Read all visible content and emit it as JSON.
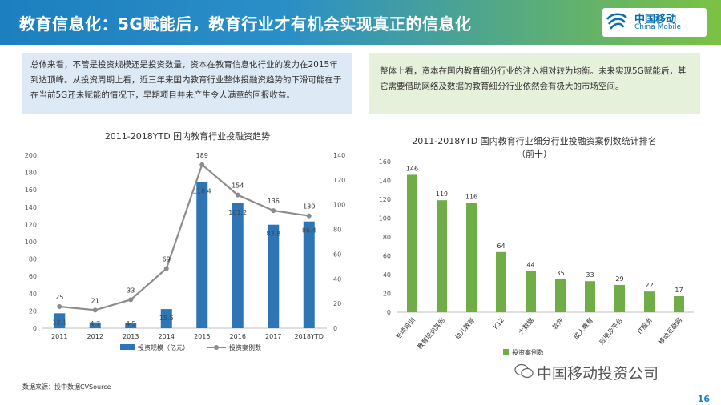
{
  "header": {
    "title": "教育信息化：5G赋能后，教育行业才有机会实现真正的信息化",
    "logo_cn": "中国移动",
    "logo_en": "China Mobile"
  },
  "left_box": {
    "text": "总体来看，不管是投资规模还是投资数量，资本在教育信息化行业的发力在2015年到达顶峰。从投资周期上看，近三年来国内教育行业整体投融资趋势的下滑可能在于在当前5G还未赋能的情况下，早期项目并未产生令人满意的回报收益。"
  },
  "right_box": {
    "text": "整体上看，资本在国内教育细分行业的注入相对较为均衡。未来实现5G赋能后，其它需要借助网络及数据的教育细分行业依然会有极大的市场空间。"
  },
  "chart_data": [
    {
      "type": "bar",
      "title": "2011-2018YTD 国内教育行业投融资趋势",
      "categories": [
        "2011",
        "2012",
        "2013",
        "2014",
        "2015",
        "2016",
        "2017",
        "2018YTD"
      ],
      "series": [
        {
          "name": "投资规模（亿元）",
          "kind": "bar",
          "axis": "right",
          "values": [
            12.1,
            4.7,
            4.5,
            15.5,
            118.4,
            101.2,
            83.8,
            86.4
          ],
          "color": "#2e75b6"
        },
        {
          "name": "投资案例数",
          "kind": "line",
          "axis": "left",
          "values": [
            25,
            21,
            33,
            69,
            189,
            154,
            136,
            130
          ],
          "color": "#8c8c8c"
        }
      ],
      "ylim_left": [
        0,
        200
      ],
      "yticks_left": [
        0,
        20,
        40,
        60,
        80,
        100,
        120,
        140,
        160,
        180,
        200
      ],
      "ylim_right": [
        0,
        140
      ],
      "yticks_right": [
        0,
        20,
        40,
        60,
        80,
        100,
        120,
        140
      ],
      "legend": "bottom"
    },
    {
      "type": "bar",
      "title": "2011-2018YTD 国内教育行业细分行业投融资案例数统计排名",
      "subtitle": "（前十）",
      "categories": [
        "专项培训",
        "教育培训其他",
        "幼儿教育",
        "K12",
        "大数据",
        "软件",
        "成人教育",
        "应用及平台",
        "IT服务",
        "移动互联网"
      ],
      "series": [
        {
          "name": "投资案例数",
          "values": [
            146,
            119,
            116,
            64,
            44,
            35,
            33,
            29,
            22,
            17
          ],
          "color": "#70ad47"
        }
      ],
      "ylim": [
        0,
        160
      ],
      "yticks": [
        0,
        20,
        40,
        60,
        80,
        100,
        120,
        140,
        160
      ],
      "legend": "bottom"
    }
  ],
  "footer": {
    "source": "数据来源：投中数据CVSource",
    "watermark": "中国移动投资公司",
    "page_number": "16"
  }
}
